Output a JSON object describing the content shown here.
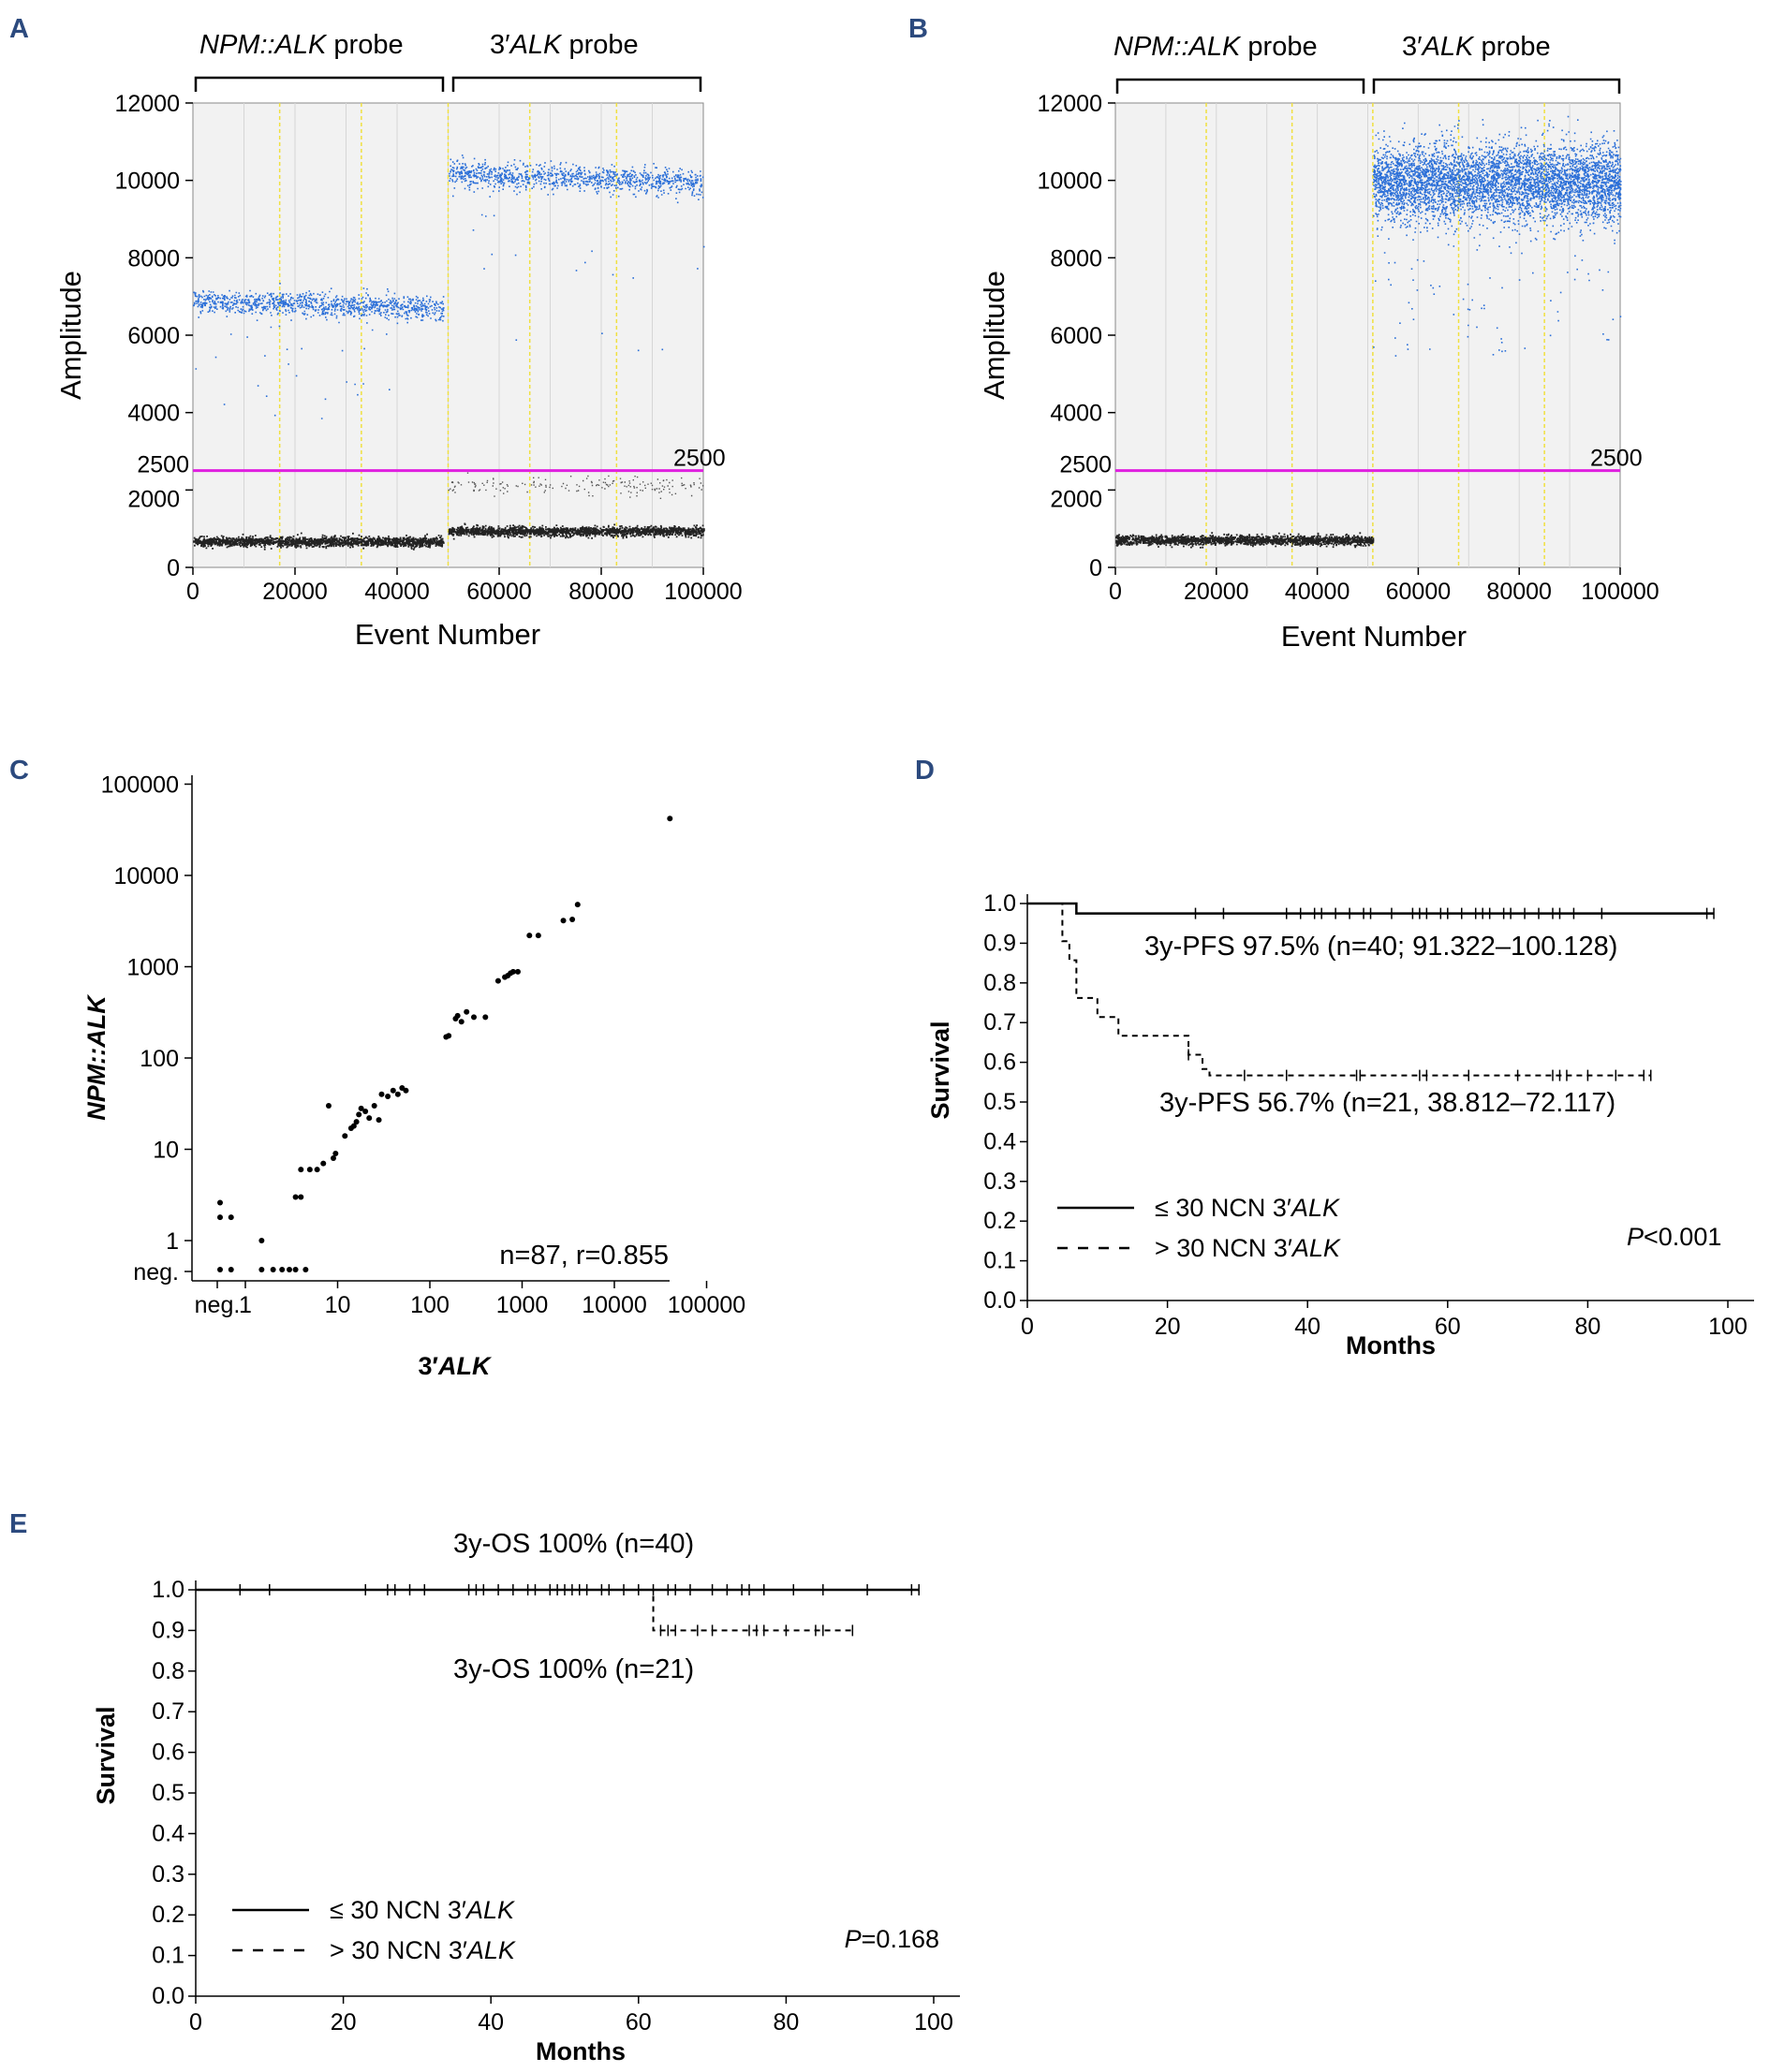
{
  "chart_data": [
    {
      "panel": "A",
      "type": "scatter",
      "title": "",
      "probe_labels": [
        {
          "name": "NPM::ALK",
          "suffix": " probe"
        },
        {
          "prefix": "3′",
          "name": "ALK",
          "suffix": " probe"
        }
      ],
      "xlabel": "Event Number",
      "ylabel": "Amplitude",
      "xlim": [
        0,
        100000
      ],
      "ylim": [
        0,
        12000
      ],
      "xticks": [
        "0",
        "20000",
        "40000",
        "60000",
        "80000",
        "100000"
      ],
      "yticks": [
        "0",
        "2000",
        "4000",
        "6000",
        "8000",
        "10000",
        "12000"
      ],
      "threshold": {
        "value": 2500,
        "label": "2500",
        "left_label": "2500",
        "color": "#e020e0"
      },
      "clusters": [
        {
          "series": "positive",
          "x": [
            0,
            49000
          ],
          "mean": 6900,
          "end_mean": 6700,
          "spread": 150,
          "color": "#2b6fd8"
        },
        {
          "series": "negative",
          "x": [
            0,
            49000
          ],
          "mean": 680,
          "spread": 60,
          "color": "#222222"
        },
        {
          "series": "positive",
          "x": [
            50000,
            100000
          ],
          "mean": 10200,
          "end_mean": 9950,
          "spread": 170,
          "color": "#2b6fd8"
        },
        {
          "series": "negative",
          "x": [
            50000,
            100000
          ],
          "mean": 950,
          "spread": 60,
          "color": "#222222"
        },
        {
          "series": "rain",
          "x": [
            50000,
            100000
          ],
          "mean": 2150,
          "spread": 120,
          "color": "#555555"
        }
      ],
      "well_boundaries": [
        17000,
        33000,
        50000,
        66000,
        83000
      ]
    },
    {
      "panel": "B",
      "type": "scatter",
      "probe_labels": [
        {
          "name": "NPM::ALK",
          "suffix": " probe"
        },
        {
          "prefix": "3′",
          "name": "ALK",
          "suffix": " probe"
        }
      ],
      "xlabel": "Event Number",
      "ylabel": "Amplitude",
      "xlim": [
        0,
        100000
      ],
      "ylim": [
        0,
        12000
      ],
      "xticks": [
        "0",
        "20000",
        "40000",
        "60000",
        "80000",
        "100000"
      ],
      "yticks": [
        "0",
        "2000",
        "4000",
        "6000",
        "8000",
        "10000",
        "12000"
      ],
      "threshold": {
        "value": 2500,
        "label": "2500",
        "left_label": "2500",
        "color": "#e020e0"
      },
      "clusters": [
        {
          "series": "negative",
          "x": [
            0,
            51000
          ],
          "mean": 720,
          "spread": 60,
          "color": "#222222"
        },
        {
          "series": "positive",
          "x": [
            51000,
            100000
          ],
          "mean": 9950,
          "spread": 500,
          "color": "#2b6fd8"
        }
      ],
      "well_boundaries": [
        18000,
        35000,
        51000,
        68000,
        85000
      ]
    },
    {
      "panel": "C",
      "type": "scatter",
      "xlabel": {
        "prefix": "3′",
        "name": "ALK"
      },
      "ylabel": "NPM::ALK",
      "scale": "log",
      "xticks": [
        "neg.",
        "1",
        "10",
        "100",
        "1000",
        "10000",
        "100000"
      ],
      "yticks": [
        "neg.",
        "1",
        "10",
        "100",
        "1000",
        "10000",
        "100000"
      ],
      "annotation": "n=87, r=0.855",
      "points": [
        [
          0.4,
          0.4
        ],
        [
          0.4,
          1.8
        ],
        [
          0.4,
          2.6
        ],
        [
          0.7,
          0.4
        ],
        [
          0.7,
          1.8
        ],
        [
          1.5,
          0.4
        ],
        [
          1.5,
          1.0
        ],
        [
          2,
          0.4
        ],
        [
          2.5,
          0.4
        ],
        [
          3,
          0.4
        ],
        [
          3.5,
          3
        ],
        [
          3.5,
          0.4
        ],
        [
          4,
          3
        ],
        [
          4,
          6
        ],
        [
          4.5,
          0.4
        ],
        [
          5,
          6
        ],
        [
          6,
          6
        ],
        [
          7,
          7
        ],
        [
          8,
          30
        ],
        [
          9,
          8
        ],
        [
          9.5,
          9
        ],
        [
          12,
          14
        ],
        [
          14,
          17
        ],
        [
          15,
          18
        ],
        [
          16,
          20
        ],
        [
          17,
          24
        ],
        [
          18,
          28
        ],
        [
          20,
          26
        ],
        [
          22,
          22
        ],
        [
          25,
          30
        ],
        [
          28,
          21
        ],
        [
          30,
          40
        ],
        [
          35,
          38
        ],
        [
          40,
          44
        ],
        [
          45,
          40
        ],
        [
          50,
          47
        ],
        [
          55,
          44
        ],
        [
          150,
          170
        ],
        [
          160,
          175
        ],
        [
          190,
          270
        ],
        [
          200,
          290
        ],
        [
          220,
          250
        ],
        [
          250,
          320
        ],
        [
          300,
          280
        ],
        [
          400,
          280
        ],
        [
          550,
          700
        ],
        [
          650,
          770
        ],
        [
          700,
          800
        ],
        [
          750,
          850
        ],
        [
          800,
          880
        ],
        [
          900,
          880
        ],
        [
          1200,
          2200
        ],
        [
          1500,
          2200
        ],
        [
          2800,
          3200
        ],
        [
          3500,
          3300
        ],
        [
          4000,
          4800
        ],
        [
          40000,
          42000
        ]
      ]
    },
    {
      "panel": "D",
      "type": "line",
      "xlabel": "Months",
      "ylabel": "Survival",
      "xlim": [
        0,
        100
      ],
      "ylim": [
        0,
        1.0
      ],
      "xticks": [
        "0",
        "20",
        "40",
        "60",
        "80",
        "100"
      ],
      "yticks": [
        "0.0",
        "0.1",
        "0.2",
        "0.3",
        "0.4",
        "0.5",
        "0.6",
        "0.7",
        "0.8",
        "0.9",
        "1.0"
      ],
      "pvalue": {
        "prefix": "P",
        "value": "<0.001"
      },
      "legend": [
        {
          "sym": "≤",
          "text": " 30 NCN 3′",
          "gene": "ALK",
          "style": "solid"
        },
        {
          "sym": ">",
          "text": " 30 NCN 3′",
          "gene": "ALK",
          "style": "dashed"
        }
      ],
      "series": [
        {
          "name": "≤30 NCN 3′ALK",
          "label": "3y-PFS 97.5% (n=40; 91.322–100.128)",
          "steps": [
            [
              0,
              1.0
            ],
            [
              7,
              0.975
            ],
            [
              98,
              0.975
            ]
          ],
          "censors": [
            24,
            28,
            37,
            39,
            41,
            42,
            44,
            46,
            48,
            49,
            52,
            55,
            56,
            57,
            59,
            60,
            62,
            64,
            65,
            66,
            68,
            69,
            71,
            73,
            75,
            76,
            78,
            82,
            97,
            98
          ]
        },
        {
          "name": ">30 NCN 3′ALK",
          "label": "3y-PFS 56.7% (n=21, 38.812–72.117)",
          "steps": [
            [
              0,
              1.0
            ],
            [
              5,
              0.905
            ],
            [
              6,
              0.857
            ],
            [
              7,
              0.762
            ],
            [
              10,
              0.714
            ],
            [
              13,
              0.667
            ],
            [
              23,
              0.619
            ],
            [
              25,
              0.583
            ],
            [
              26,
              0.567
            ],
            [
              89,
              0.567
            ]
          ],
          "censors": [
            23,
            31,
            37,
            47,
            47.5,
            56,
            57,
            63,
            70,
            75,
            76,
            77,
            80,
            84,
            88,
            89
          ]
        }
      ]
    },
    {
      "panel": "E",
      "type": "line",
      "xlabel": "Months",
      "ylabel": "Survival",
      "xlim": [
        0,
        100
      ],
      "ylim": [
        0,
        1.0
      ],
      "xticks": [
        "0",
        "20",
        "40",
        "60",
        "80",
        "100"
      ],
      "yticks": [
        "0.0",
        "0.1",
        "0.2",
        "0.3",
        "0.4",
        "0.5",
        "0.6",
        "0.7",
        "0.8",
        "0.9",
        "1.0"
      ],
      "pvalue": {
        "prefix": "P",
        "value": "=0.168"
      },
      "legend": [
        {
          "sym": "≤",
          "text": " 30 NCN 3′",
          "gene": "ALK",
          "style": "solid"
        },
        {
          "sym": ">",
          "text": " 30 NCN 3′",
          "gene": "ALK",
          "style": "dashed"
        }
      ],
      "series": [
        {
          "name": "≤30 NCN 3′ALK",
          "label": "3y-OS 100% (n=40)",
          "steps": [
            [
              0,
              1.0
            ],
            [
              98,
              1.0
            ]
          ],
          "censors": [
            6,
            10,
            23,
            26,
            27,
            29,
            31,
            37,
            38,
            39,
            41,
            43,
            45,
            46,
            48,
            49,
            50,
            51,
            52,
            53,
            55,
            56,
            58,
            60,
            62,
            64,
            65,
            67,
            70,
            72,
            74,
            75,
            77,
            81,
            85,
            91,
            97,
            98
          ]
        },
        {
          "name": ">30 NCN 3′ALK",
          "label": "3y-OS 100% (n=21)",
          "steps": [
            [
              0,
              1.0
            ],
            [
              62,
              1.0
            ],
            [
              62,
              0.9
            ],
            [
              89,
              0.9
            ]
          ],
          "censors": [
            63,
            64,
            65,
            68,
            70,
            75,
            76,
            77,
            80,
            84,
            85,
            89
          ]
        }
      ]
    }
  ]
}
